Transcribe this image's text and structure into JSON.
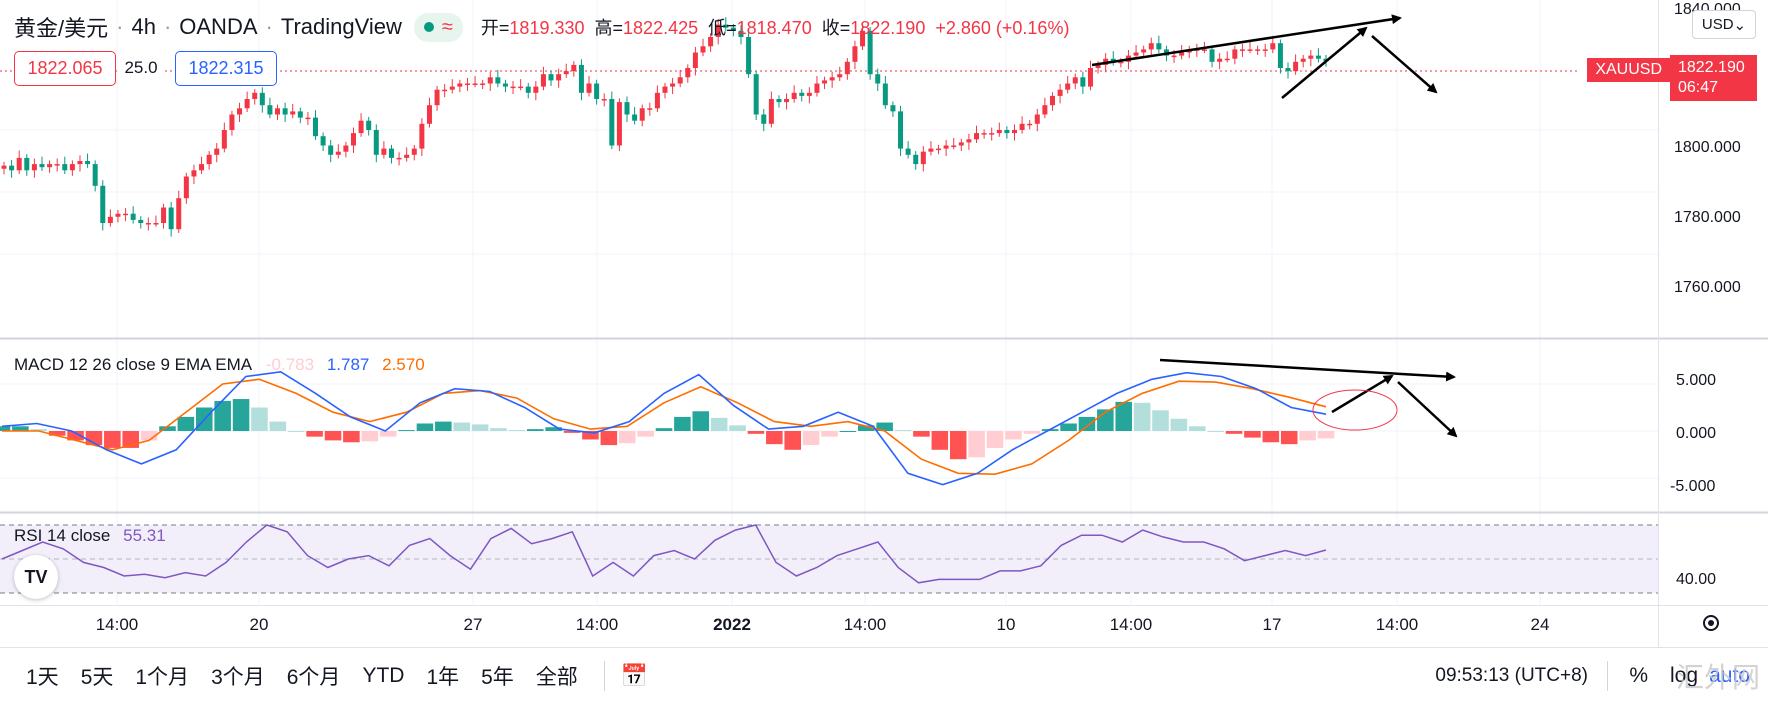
{
  "legend": {
    "symbol": "黄金/美元",
    "interval": "4h",
    "broker": "OANDA",
    "platform": "TradingView",
    "wave": "≈",
    "ohlc": [
      {
        "k": "开=",
        "v": "1819.330"
      },
      {
        "k": "高=",
        "v": "1822.425"
      },
      {
        "k": "低=",
        "v": "1818.470"
      },
      {
        "k": "收=",
        "v": "1822.190"
      }
    ],
    "change": "+2.860 (+0.16%)"
  },
  "quote": {
    "bid": "1822.065",
    "spread": "25.0",
    "ask": "1822.315"
  },
  "price_scale": {
    "currency": "USD",
    "symbol_tag": "XAUUSD",
    "last": "1822.190",
    "countdown": "06:47"
  },
  "macd": {
    "label": "MACD 12 26 close 9 EMA EMA",
    "hist": "-0.783",
    "macd": "1.787",
    "signal": "2.570"
  },
  "rsi": {
    "label": "RSI 14 close",
    "value": "55.31"
  },
  "colors": {
    "up": "#f23645",
    "down": "#089981",
    "macd_line": "#2962ff",
    "signal_line": "#ff6d00",
    "rsi_line": "#7e57c2",
    "hist_up_strong": "#26a69a",
    "hist_up_weak": "#b2dfdb",
    "hist_down_strong": "#ff5252",
    "hist_down_weak": "#ffcdd2"
  },
  "logo": "TV",
  "ranges": [
    "1天",
    "5天",
    "1个月",
    "3个月",
    "6个月",
    "YTD",
    "1年",
    "5年",
    "全部"
  ],
  "clock": "09:53:13 (UTC+8)",
  "right_tools": [
    "%",
    "log",
    "auto"
  ],
  "watermark": "汇外网",
  "chart_data": [
    {
      "type": "candlestick",
      "title": "黄金/美元 · 4h · OANDA",
      "x_tick_labels": [
        "14:00",
        "20",
        "27",
        "14:00",
        "2022",
        "14:00",
        "10",
        "14:00",
        "17",
        "14:00",
        "24"
      ],
      "y_tick_labels": [
        "1840.000",
        "1800.000",
        "1780.000",
        "1760.000"
      ],
      "ylim": [
        1747,
        1840
      ],
      "last_price": 1822.19,
      "candles_close": [
        1788.5,
        1787,
        1791,
        1787,
        1789,
        1788,
        1789,
        1789,
        1787,
        1789,
        1790,
        1789,
        1782,
        1770,
        1772,
        1773,
        1773,
        1771,
        1770,
        1770,
        1770,
        1775,
        1768,
        1778,
        1785,
        1787,
        1789,
        1792,
        1794,
        1800,
        1805,
        1807,
        1810,
        1812,
        1808,
        1805,
        1807,
        1805,
        1806,
        1804,
        1804,
        1798,
        1795,
        1792,
        1793,
        1795,
        1799,
        1803,
        1800,
        1792,
        1794,
        1791,
        1791,
        1792,
        1794,
        1802,
        1808,
        1813,
        1813,
        1814,
        1815,
        1815,
        1815,
        1815,
        1817,
        1815,
        1814,
        1814,
        1814,
        1812,
        1814,
        1818,
        1816,
        1818,
        1819,
        1821,
        1812,
        1815,
        1810,
        1810,
        1795,
        1809,
        1805,
        1803,
        1807,
        1807,
        1812,
        1814,
        1815,
        1817,
        1820,
        1825,
        1827,
        1830,
        1834,
        1833,
        1832,
        1830,
        1818,
        1805,
        1802,
        1810,
        1809,
        1810,
        1812,
        1811,
        1812,
        1815,
        1816,
        1817,
        1818,
        1822,
        1827,
        1832,
        1818,
        1815,
        1808,
        1806,
        1794,
        1792,
        1789,
        1793,
        1794,
        1794,
        1795,
        1795,
        1796,
        1797,
        1799,
        1799,
        1799,
        1800,
        1799,
        1800,
        1802,
        1802,
        1805,
        1808,
        1811,
        1813,
        1815,
        1817,
        1814,
        1820,
        1821,
        1823,
        1822,
        1822,
        1824,
        1825,
        1826,
        1828,
        1826,
        1824,
        1824,
        1825,
        1826,
        1826,
        1826,
        1822,
        1823,
        1823,
        1826,
        1826,
        1826,
        1826,
        1826,
        1828,
        1820,
        1819,
        1822,
        1823,
        1824,
        1823,
        1822.19
      ]
    },
    {
      "type": "bar",
      "title": "MACD 12 26 close 9 EMA EMA",
      "y_tick_labels": [
        "5.000",
        "0.000",
        "-5.000"
      ],
      "ylim": [
        -7.5,
        7.2
      ],
      "series": [
        {
          "name": "hist_sample",
          "values": [
            0.5,
            0.5,
            0.2,
            -0.5,
            -1,
            -1.5,
            -1.8,
            -1.8,
            -1,
            0.5,
            1.5,
            2.5,
            3.2,
            3.4,
            2.5,
            1,
            0,
            -0.6,
            -1,
            -1.2,
            -1.1,
            -0.6,
            0.1,
            0.8,
            1,
            0.9,
            0.7,
            0.3,
            0.1,
            0.2,
            0.4,
            -0.2,
            -0.9,
            -1.5,
            -1.3,
            -0.6,
            0.3,
            1.5,
            2.1,
            1.4,
            0.6,
            -0.3,
            -1.4,
            -2,
            -1.5,
            -0.6,
            0,
            0.6,
            0.9,
            0.1,
            -0.6,
            -2,
            -3,
            -2.8,
            -1.8,
            -0.9,
            -0.3,
            0.2,
            0.8,
            1.5,
            2.3,
            3.1,
            3,
            2.2,
            1.3,
            0.5,
            0,
            -0.3,
            -0.7,
            -1.2,
            -1.4,
            -1,
            -0.783
          ]
        },
        {
          "name": "macd_sample",
          "values": [
            0.5,
            0.8,
            0,
            -2,
            -3.5,
            -2,
            2,
            5.8,
            6.3,
            4,
            1.5,
            0,
            3,
            4.5,
            4.2,
            2.5,
            0.2,
            -0.2,
            1,
            4,
            6,
            2.7,
            0.2,
            0.5,
            2,
            0.5,
            -4.5,
            -5.7,
            -4.5,
            -2,
            0,
            2,
            4,
            5.5,
            6.2,
            5.8,
            4.5,
            2.5,
            1.787
          ]
        },
        {
          "name": "signal_sample",
          "values": [
            0,
            0,
            -1,
            -2,
            -1,
            2,
            5,
            5.5,
            4,
            2,
            1,
            2,
            4,
            4.3,
            3.5,
            1.3,
            0.2,
            0.5,
            3,
            4.7,
            3,
            1,
            0.5,
            1,
            0,
            -3,
            -4.5,
            -4.6,
            -3.5,
            -1,
            2,
            4,
            5.3,
            5.2,
            4.5,
            3.6,
            2.57
          ]
        }
      ]
    },
    {
      "type": "line",
      "title": "RSI 14 close",
      "y_tick_labels": [
        "40.00"
      ],
      "ylim": [
        30,
        70
      ],
      "series": [
        {
          "name": "rsi_sample",
          "values": [
            50,
            55,
            60,
            56,
            48,
            45,
            40,
            41,
            39,
            42,
            40,
            48,
            60,
            70,
            66,
            52,
            45,
            50,
            52,
            46,
            58,
            62,
            52,
            44,
            62,
            68,
            59,
            62,
            66,
            40,
            48,
            40,
            52,
            55,
            50,
            61,
            67,
            70,
            48,
            40,
            45,
            52,
            56,
            60,
            45,
            36,
            38,
            38,
            38,
            43,
            43,
            46,
            58,
            64,
            64,
            60,
            67,
            63,
            60,
            60,
            56,
            49,
            52,
            55,
            52,
            55.31
          ]
        }
      ]
    }
  ]
}
